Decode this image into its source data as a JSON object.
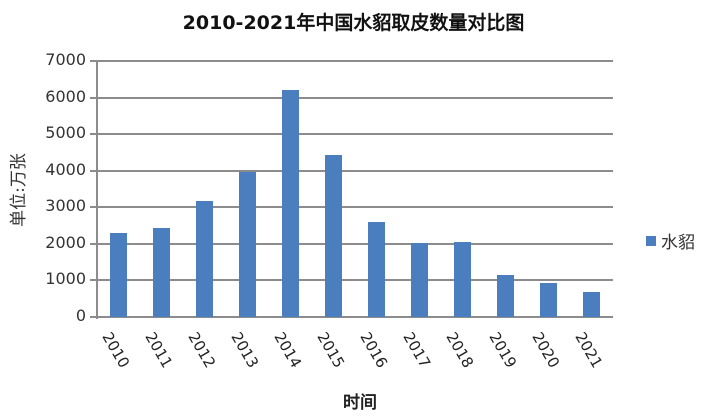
{
  "chart_data": {
    "type": "bar",
    "title": "2010-2021年中国水貂取皮数量对比图",
    "xlabel": "时间",
    "ylabel": "单位:万张",
    "categories": [
      "2010",
      "2011",
      "2012",
      "2013",
      "2014",
      "2015",
      "2016",
      "2017",
      "2018",
      "2019",
      "2020",
      "2021"
    ],
    "series": [
      {
        "name": "水貂",
        "color": "#4a7ebf",
        "values": [
          2300,
          2440,
          3180,
          3970,
          6210,
          4440,
          2610,
          2030,
          2060,
          1160,
          920,
          680
        ]
      }
    ],
    "ylim": [
      0,
      7000
    ],
    "yticks": [
      0,
      1000,
      2000,
      3000,
      4000,
      5000,
      6000,
      7000
    ],
    "grid": true,
    "legend_position": "right"
  }
}
